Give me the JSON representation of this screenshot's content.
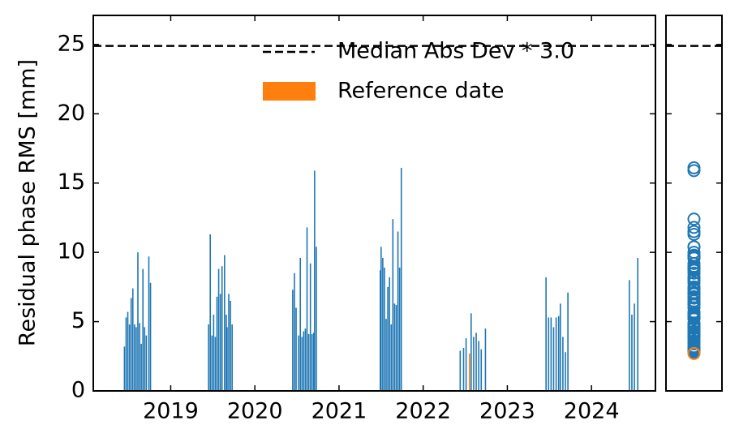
{
  "chart_data": {
    "type": "bar",
    "ylabel": "Residual phase RMS [mm]",
    "xlim": [
      2018.08,
      2024.76
    ],
    "xticks": [
      2019,
      2020,
      2021,
      2022,
      2023,
      2024
    ],
    "ylim": [
      0,
      27.1
    ],
    "yticks": [
      0,
      5,
      10,
      15,
      20,
      25
    ],
    "legend": "upper right",
    "color": "#1f77b4",
    "x": [
      2018.45,
      2018.47,
      2018.49,
      2018.51,
      2018.53,
      2018.55,
      2018.57,
      2018.59,
      2018.61,
      2018.63,
      2018.65,
      2018.67,
      2018.69,
      2018.71,
      2018.74,
      2018.76,
      2019.45,
      2019.47,
      2019.49,
      2019.51,
      2019.53,
      2019.55,
      2019.57,
      2019.59,
      2019.61,
      2019.64,
      2019.66,
      2019.67,
      2019.69,
      2019.71,
      2019.73,
      2020.45,
      2020.47,
      2020.49,
      2020.52,
      2020.54,
      2020.56,
      2020.58,
      2020.6,
      2020.62,
      2020.64,
      2020.66,
      2020.68,
      2020.7,
      2020.71,
      2020.73,
      2021.49,
      2021.5,
      2021.52,
      2021.54,
      2021.56,
      2021.58,
      2021.6,
      2021.62,
      2021.64,
      2021.66,
      2021.68,
      2021.7,
      2021.72,
      2021.74,
      2022.44,
      2022.48,
      2022.51,
      2022.57,
      2022.6,
      2022.63,
      2022.66,
      2022.69,
      2022.74,
      2023.46,
      2023.49,
      2023.52,
      2023.55,
      2023.58,
      2023.61,
      2023.63,
      2023.66,
      2023.69,
      2023.72,
      2024.45,
      2024.48,
      2024.51,
      2024.55
    ],
    "values": [
      3.2,
      5.3,
      5.7,
      4.8,
      6.7,
      7.4,
      4.8,
      4.6,
      10.0,
      4.9,
      3.4,
      8.8,
      4.6,
      4.0,
      9.7,
      7.8,
      4.8,
      11.3,
      4.0,
      5.5,
      3.9,
      6.8,
      8.8,
      7.0,
      9.0,
      9.8,
      5.5,
      4.6,
      7.0,
      6.5,
      4.8,
      7.3,
      8.5,
      6.0,
      4.0,
      9.6,
      3.9,
      4.3,
      4.5,
      11.8,
      4.1,
      9.2,
      4.1,
      4.2,
      15.9,
      10.4,
      8.7,
      10.4,
      9.6,
      8.9,
      5.2,
      7.5,
      8.2,
      4.8,
      12.4,
      6.3,
      6.2,
      11.5,
      8.9,
      16.1,
      2.9,
      3.1,
      3.8,
      5.6,
      3.9,
      4.2,
      3.6,
      3.0,
      4.5,
      8.2,
      5.3,
      5.3,
      4.6,
      5.3,
      5.4,
      6.3,
      3.9,
      2.8,
      7.1,
      8.0,
      5.5,
      6.3,
      9.6
    ],
    "reference": {
      "name": "Reference date",
      "x": 2022.55,
      "value": 2.7,
      "color": "#ff7f0e"
    },
    "threshold": {
      "name": "Median Abs Dev * 3.0",
      "value": 24.9,
      "color": "#000000"
    }
  }
}
